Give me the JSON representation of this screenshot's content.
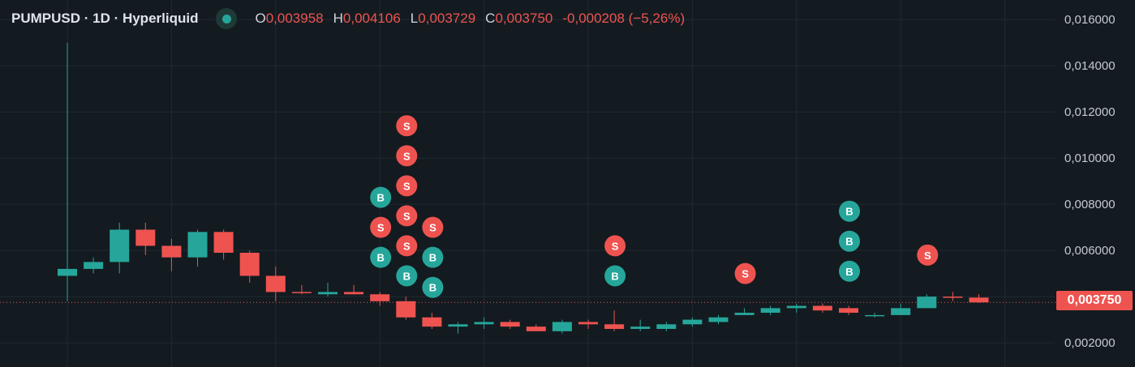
{
  "legend": {
    "symbol": "PUMPUSD · 1D · Hyperliquid",
    "open_label": "O",
    "open": "0,003958",
    "high_label": "H",
    "high": "0,004106",
    "low_label": "L",
    "low": "0,003729",
    "close_label": "C",
    "close": "0,003750",
    "change": "-0,000208 (−5,26%)"
  },
  "last_price_label": "0,003750",
  "colors": {
    "up": "#26a69a",
    "down": "#ef5350",
    "background": "#131b20",
    "grid": "#1f2a30"
  },
  "chart_data": {
    "type": "candlestick",
    "interval": "1D",
    "y_ticks": [
      "0,016000",
      "0,014000",
      "0,012000",
      "0,010000",
      "0,008000",
      "0,006000",
      "0,004000",
      "0,002000"
    ],
    "y_tick_values": [
      0.016,
      0.014,
      0.012,
      0.01,
      0.008,
      0.006,
      0.004,
      0.002
    ],
    "ylim": [
      0.00095,
      0.01685
    ],
    "grid": true,
    "last_price": 0.00375,
    "candles": [
      {
        "o": 0.0049,
        "h": 0.015,
        "l": 0.0038,
        "c": 0.0052
      },
      {
        "o": 0.0052,
        "h": 0.0057,
        "l": 0.005,
        "c": 0.0055
      },
      {
        "o": 0.0055,
        "h": 0.0072,
        "l": 0.005,
        "c": 0.0069
      },
      {
        "o": 0.0069,
        "h": 0.0072,
        "l": 0.0058,
        "c": 0.0062
      },
      {
        "o": 0.0062,
        "h": 0.0065,
        "l": 0.0051,
        "c": 0.0057
      },
      {
        "o": 0.0057,
        "h": 0.0069,
        "l": 0.0053,
        "c": 0.0068
      },
      {
        "o": 0.0068,
        "h": 0.0069,
        "l": 0.0056,
        "c": 0.0059
      },
      {
        "o": 0.0059,
        "h": 0.006,
        "l": 0.0046,
        "c": 0.0049
      },
      {
        "o": 0.0049,
        "h": 0.0053,
        "l": 0.0038,
        "c": 0.0042
      },
      {
        "o": 0.0042,
        "h": 0.0045,
        "l": 0.0041,
        "c": 0.00415
      },
      {
        "o": 0.0041,
        "h": 0.0046,
        "l": 0.004,
        "c": 0.0042
      },
      {
        "o": 0.0042,
        "h": 0.0045,
        "l": 0.0041,
        "c": 0.0041
      },
      {
        "o": 0.0041,
        "h": 0.0042,
        "l": 0.0036,
        "c": 0.0038
      },
      {
        "o": 0.0038,
        "h": 0.004,
        "l": 0.003,
        "c": 0.0031
      },
      {
        "o": 0.0031,
        "h": 0.0033,
        "l": 0.0026,
        "c": 0.0027
      },
      {
        "o": 0.0027,
        "h": 0.0029,
        "l": 0.0024,
        "c": 0.0028
      },
      {
        "o": 0.0028,
        "h": 0.0031,
        "l": 0.0026,
        "c": 0.0029
      },
      {
        "o": 0.0029,
        "h": 0.003,
        "l": 0.0026,
        "c": 0.0027
      },
      {
        "o": 0.0027,
        "h": 0.0028,
        "l": 0.0025,
        "c": 0.0025
      },
      {
        "o": 0.0025,
        "h": 0.003,
        "l": 0.0024,
        "c": 0.0029
      },
      {
        "o": 0.0029,
        "h": 0.003,
        "l": 0.0026,
        "c": 0.0028
      },
      {
        "o": 0.0028,
        "h": 0.0034,
        "l": 0.0025,
        "c": 0.0026
      },
      {
        "o": 0.0026,
        "h": 0.003,
        "l": 0.0025,
        "c": 0.0027
      },
      {
        "o": 0.0026,
        "h": 0.0029,
        "l": 0.0025,
        "c": 0.0028
      },
      {
        "o": 0.0028,
        "h": 0.0031,
        "l": 0.0027,
        "c": 0.003
      },
      {
        "o": 0.0029,
        "h": 0.0032,
        "l": 0.0028,
        "c": 0.0031
      },
      {
        "o": 0.0032,
        "h": 0.0035,
        "l": 0.0032,
        "c": 0.0033
      },
      {
        "o": 0.0033,
        "h": 0.0036,
        "l": 0.0032,
        "c": 0.0035
      },
      {
        "o": 0.0035,
        "h": 0.0037,
        "l": 0.0033,
        "c": 0.0036
      },
      {
        "o": 0.0036,
        "h": 0.0037,
        "l": 0.0033,
        "c": 0.0034
      },
      {
        "o": 0.0035,
        "h": 0.0036,
        "l": 0.0032,
        "c": 0.0033
      },
      {
        "o": 0.0032,
        "h": 0.0033,
        "l": 0.0031,
        "c": 0.0032
      },
      {
        "o": 0.0032,
        "h": 0.0037,
        "l": 0.0032,
        "c": 0.0035
      },
      {
        "o": 0.0035,
        "h": 0.0041,
        "l": 0.0035,
        "c": 0.004
      },
      {
        "o": 0.004,
        "h": 0.0042,
        "l": 0.0038,
        "c": 0.00395
      },
      {
        "o": 0.003958,
        "h": 0.004106,
        "l": 0.003729,
        "c": 0.00375
      }
    ],
    "trade_markers": [
      {
        "candle": 12,
        "side": "B",
        "price": 0.0083
      },
      {
        "candle": 12,
        "side": "S",
        "price": 0.007
      },
      {
        "candle": 12,
        "side": "B",
        "price": 0.0057
      },
      {
        "candle": 13,
        "side": "S",
        "price": 0.0114
      },
      {
        "candle": 13,
        "side": "S",
        "price": 0.0101
      },
      {
        "candle": 13,
        "side": "S",
        "price": 0.0088
      },
      {
        "candle": 13,
        "side": "S",
        "price": 0.0075
      },
      {
        "candle": 13,
        "side": "S",
        "price": 0.0062
      },
      {
        "candle": 13,
        "side": "B",
        "price": 0.0049
      },
      {
        "candle": 14,
        "side": "S",
        "price": 0.007
      },
      {
        "candle": 14,
        "side": "B",
        "price": 0.0057
      },
      {
        "candle": 14,
        "side": "B",
        "price": 0.0044
      },
      {
        "candle": 21,
        "side": "S",
        "price": 0.0062
      },
      {
        "candle": 21,
        "side": "B",
        "price": 0.0049
      },
      {
        "candle": 26,
        "side": "S",
        "price": 0.005
      },
      {
        "candle": 30,
        "side": "B",
        "price": 0.0077
      },
      {
        "candle": 30,
        "side": "B",
        "price": 0.0064
      },
      {
        "candle": 30,
        "side": "B",
        "price": 0.0051
      },
      {
        "candle": 33,
        "side": "S",
        "price": 0.0058
      }
    ]
  }
}
